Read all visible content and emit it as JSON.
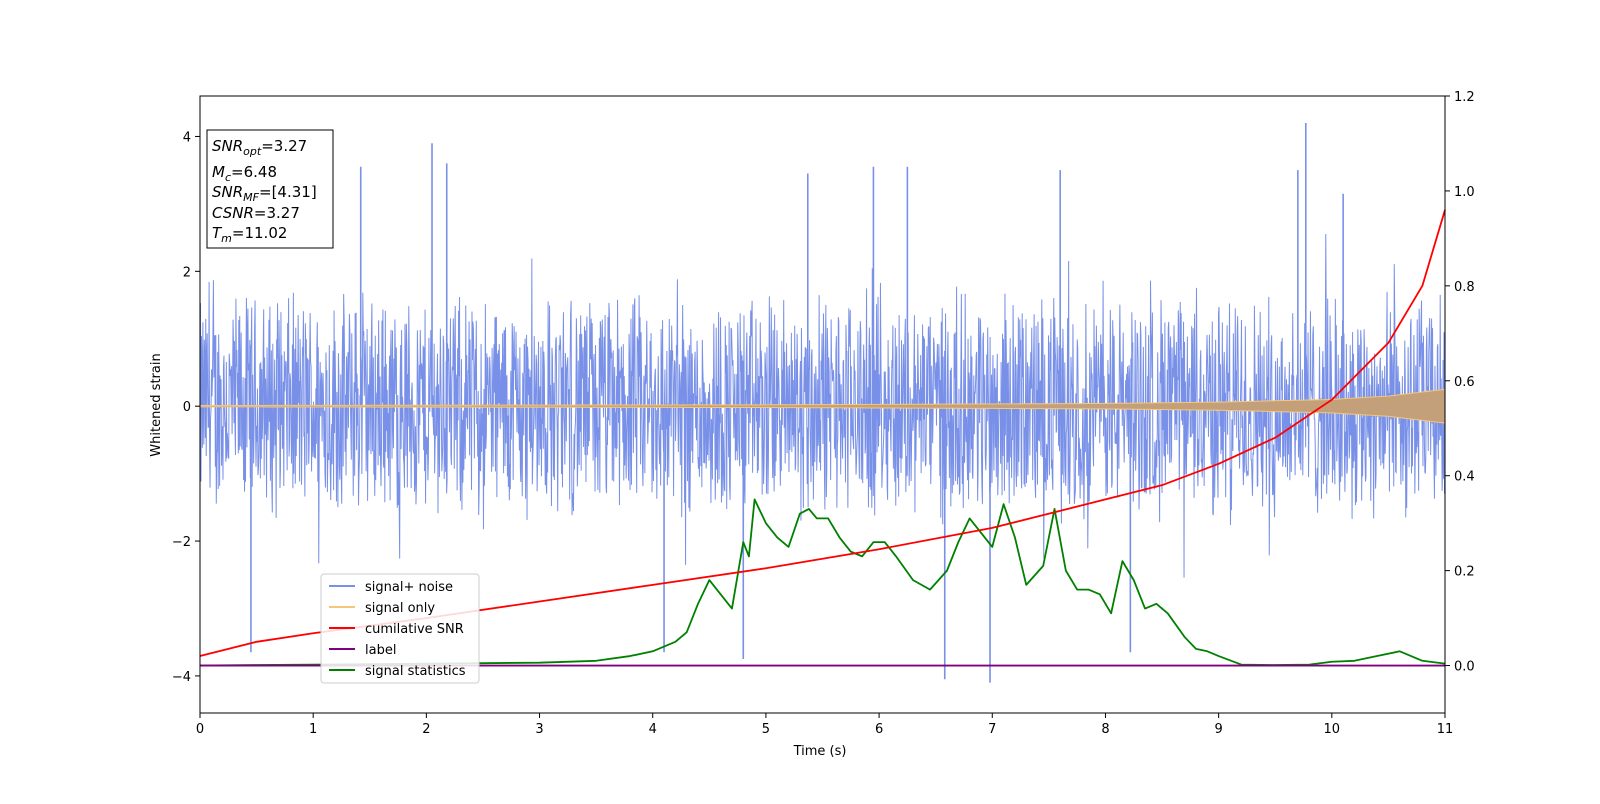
{
  "chart_data": {
    "type": "line",
    "xlabel": "Time (s)",
    "ylabel": "Whitened strain",
    "xlim": [
      0,
      11
    ],
    "ylim": [
      -4.55,
      4.6
    ],
    "y2lim": [
      -0.1,
      1.2
    ],
    "xticks": [
      "0",
      "1",
      "2",
      "3",
      "4",
      "5",
      "6",
      "7",
      "8",
      "9",
      "10",
      "11"
    ],
    "yticks": [
      "−4",
      "−2",
      "0",
      "2",
      "4"
    ],
    "y2ticks": [
      "0.0",
      "0.2",
      "0.4",
      "0.6",
      "0.8",
      "1.0",
      "1.2"
    ],
    "grid": false,
    "legend_position": "lower-left",
    "annotation_box": {
      "snr_opt": "=3.27",
      "mc": "=6.48",
      "snr_mf": "=[4.31]",
      "csnr": "=3.27",
      "tm": "=11.02"
    },
    "series": [
      {
        "name": "signal+ noise",
        "axis": "left",
        "color": "#7890e8",
        "description_kind": "noise band",
        "typical_amplitude": 1.8,
        "spikes": [
          [
            0.45,
            -3.65
          ],
          [
            1.42,
            3.55
          ],
          [
            2.05,
            3.9
          ],
          [
            2.18,
            3.6
          ],
          [
            4.1,
            -3.65
          ],
          [
            4.8,
            -3.75
          ],
          [
            5.37,
            3.45
          ],
          [
            5.95,
            3.55
          ],
          [
            6.25,
            3.55
          ],
          [
            6.58,
            -4.05
          ],
          [
            6.98,
            -4.1
          ],
          [
            7.6,
            3.5
          ],
          [
            8.22,
            -3.65
          ],
          [
            9.7,
            3.5
          ],
          [
            9.77,
            4.2
          ],
          [
            10.1,
            3.15
          ]
        ]
      },
      {
        "name": "signal only",
        "axis": "left",
        "color": "#f5c77a",
        "description_kind": "chirp",
        "x": [
          0,
          5,
          8,
          9,
          10,
          10.5,
          11
        ],
        "envelope": [
          0.01,
          0.02,
          0.04,
          0.06,
          0.1,
          0.15,
          0.25
        ]
      },
      {
        "name": "cumilative SNR",
        "axis": "right",
        "color": "#ff0000",
        "x": [
          0,
          0.5,
          1,
          2,
          3,
          4,
          5,
          6,
          7,
          8,
          8.5,
          9,
          9.5,
          10,
          10.5,
          10.8,
          11
        ],
        "y": [
          0.02,
          0.05,
          0.068,
          0.1,
          0.135,
          0.17,
          0.205,
          0.245,
          0.29,
          0.35,
          0.38,
          0.425,
          0.48,
          0.56,
          0.68,
          0.8,
          0.96
        ]
      },
      {
        "name": "label",
        "axis": "right",
        "color": "#800080",
        "x": [
          0,
          11
        ],
        "y": [
          0.0,
          0.0
        ]
      },
      {
        "name": "signal statistics",
        "axis": "right",
        "color": "#008000",
        "x": [
          0,
          0.5,
          1,
          1.5,
          2,
          2.5,
          3,
          3.5,
          3.8,
          4,
          4.2,
          4.3,
          4.4,
          4.5,
          4.6,
          4.7,
          4.8,
          4.85,
          4.9,
          5,
          5.1,
          5.2,
          5.3,
          5.38,
          5.45,
          5.55,
          5.65,
          5.75,
          5.85,
          5.95,
          6.05,
          6.15,
          6.3,
          6.45,
          6.6,
          6.7,
          6.8,
          6.9,
          7.0,
          7.1,
          7.2,
          7.3,
          7.45,
          7.55,
          7.65,
          7.75,
          7.85,
          7.95,
          8.05,
          8.15,
          8.25,
          8.35,
          8.45,
          8.55,
          8.7,
          8.8,
          8.9,
          9.0,
          9.2,
          9.5,
          9.8,
          10.0,
          10.2,
          10.4,
          10.6,
          10.8,
          11
        ],
        "y": [
          0.0,
          0.001,
          0.002,
          0.003,
          0.004,
          0.005,
          0.006,
          0.01,
          0.02,
          0.03,
          0.05,
          0.07,
          0.13,
          0.18,
          0.15,
          0.12,
          0.26,
          0.23,
          0.35,
          0.3,
          0.27,
          0.25,
          0.32,
          0.33,
          0.31,
          0.31,
          0.27,
          0.24,
          0.23,
          0.26,
          0.26,
          0.23,
          0.18,
          0.16,
          0.2,
          0.26,
          0.31,
          0.28,
          0.25,
          0.34,
          0.27,
          0.17,
          0.21,
          0.33,
          0.2,
          0.16,
          0.16,
          0.15,
          0.11,
          0.22,
          0.18,
          0.12,
          0.13,
          0.11,
          0.06,
          0.035,
          0.03,
          0.02,
          0.002,
          0.001,
          0.002,
          0.008,
          0.01,
          0.02,
          0.03,
          0.01,
          0.004
        ]
      }
    ]
  }
}
